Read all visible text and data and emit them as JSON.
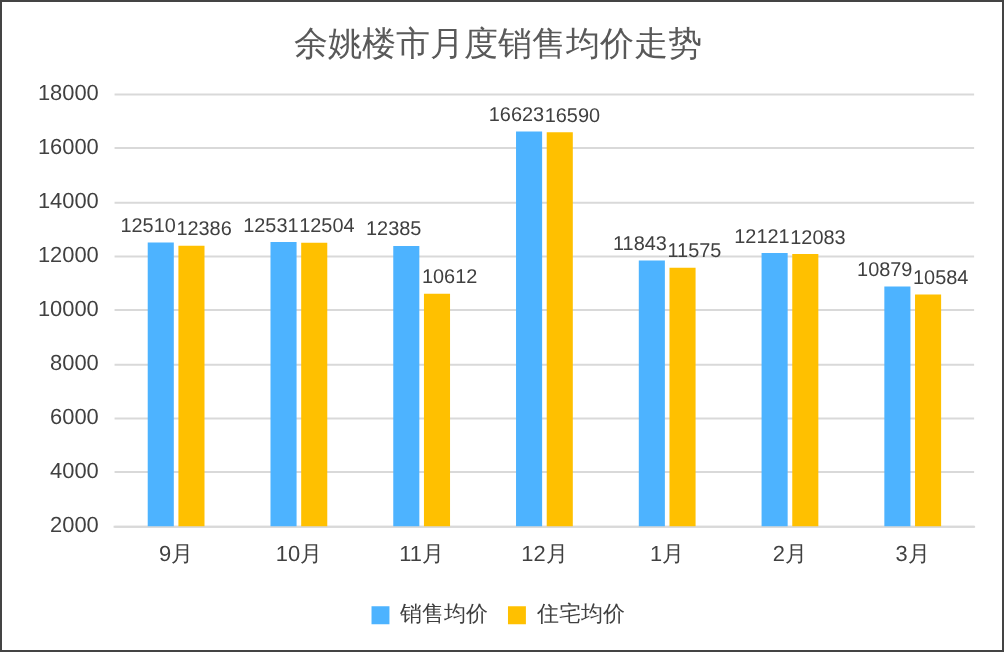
{
  "chart_data": {
    "type": "bar",
    "title": "余姚楼市月度销售均价走势",
    "categories": [
      "9月",
      "10月",
      "11月",
      "12月",
      "1月",
      "2月",
      "3月"
    ],
    "series": [
      {
        "name": "销售均价",
        "color": "#4db3ff",
        "values": [
          12510,
          12531,
          12385,
          16623,
          11843,
          12121,
          10879
        ]
      },
      {
        "name": "住宅均价",
        "color": "#ffc000",
        "values": [
          12386,
          12504,
          10612,
          16590,
          11575,
          12083,
          10584
        ]
      }
    ],
    "ylim": [
      2000,
      18000
    ],
    "yticks": [
      2000,
      4000,
      6000,
      8000,
      10000,
      12000,
      14000,
      16000,
      18000
    ],
    "grid": "y",
    "legend": "bottom",
    "data_labels": true
  }
}
